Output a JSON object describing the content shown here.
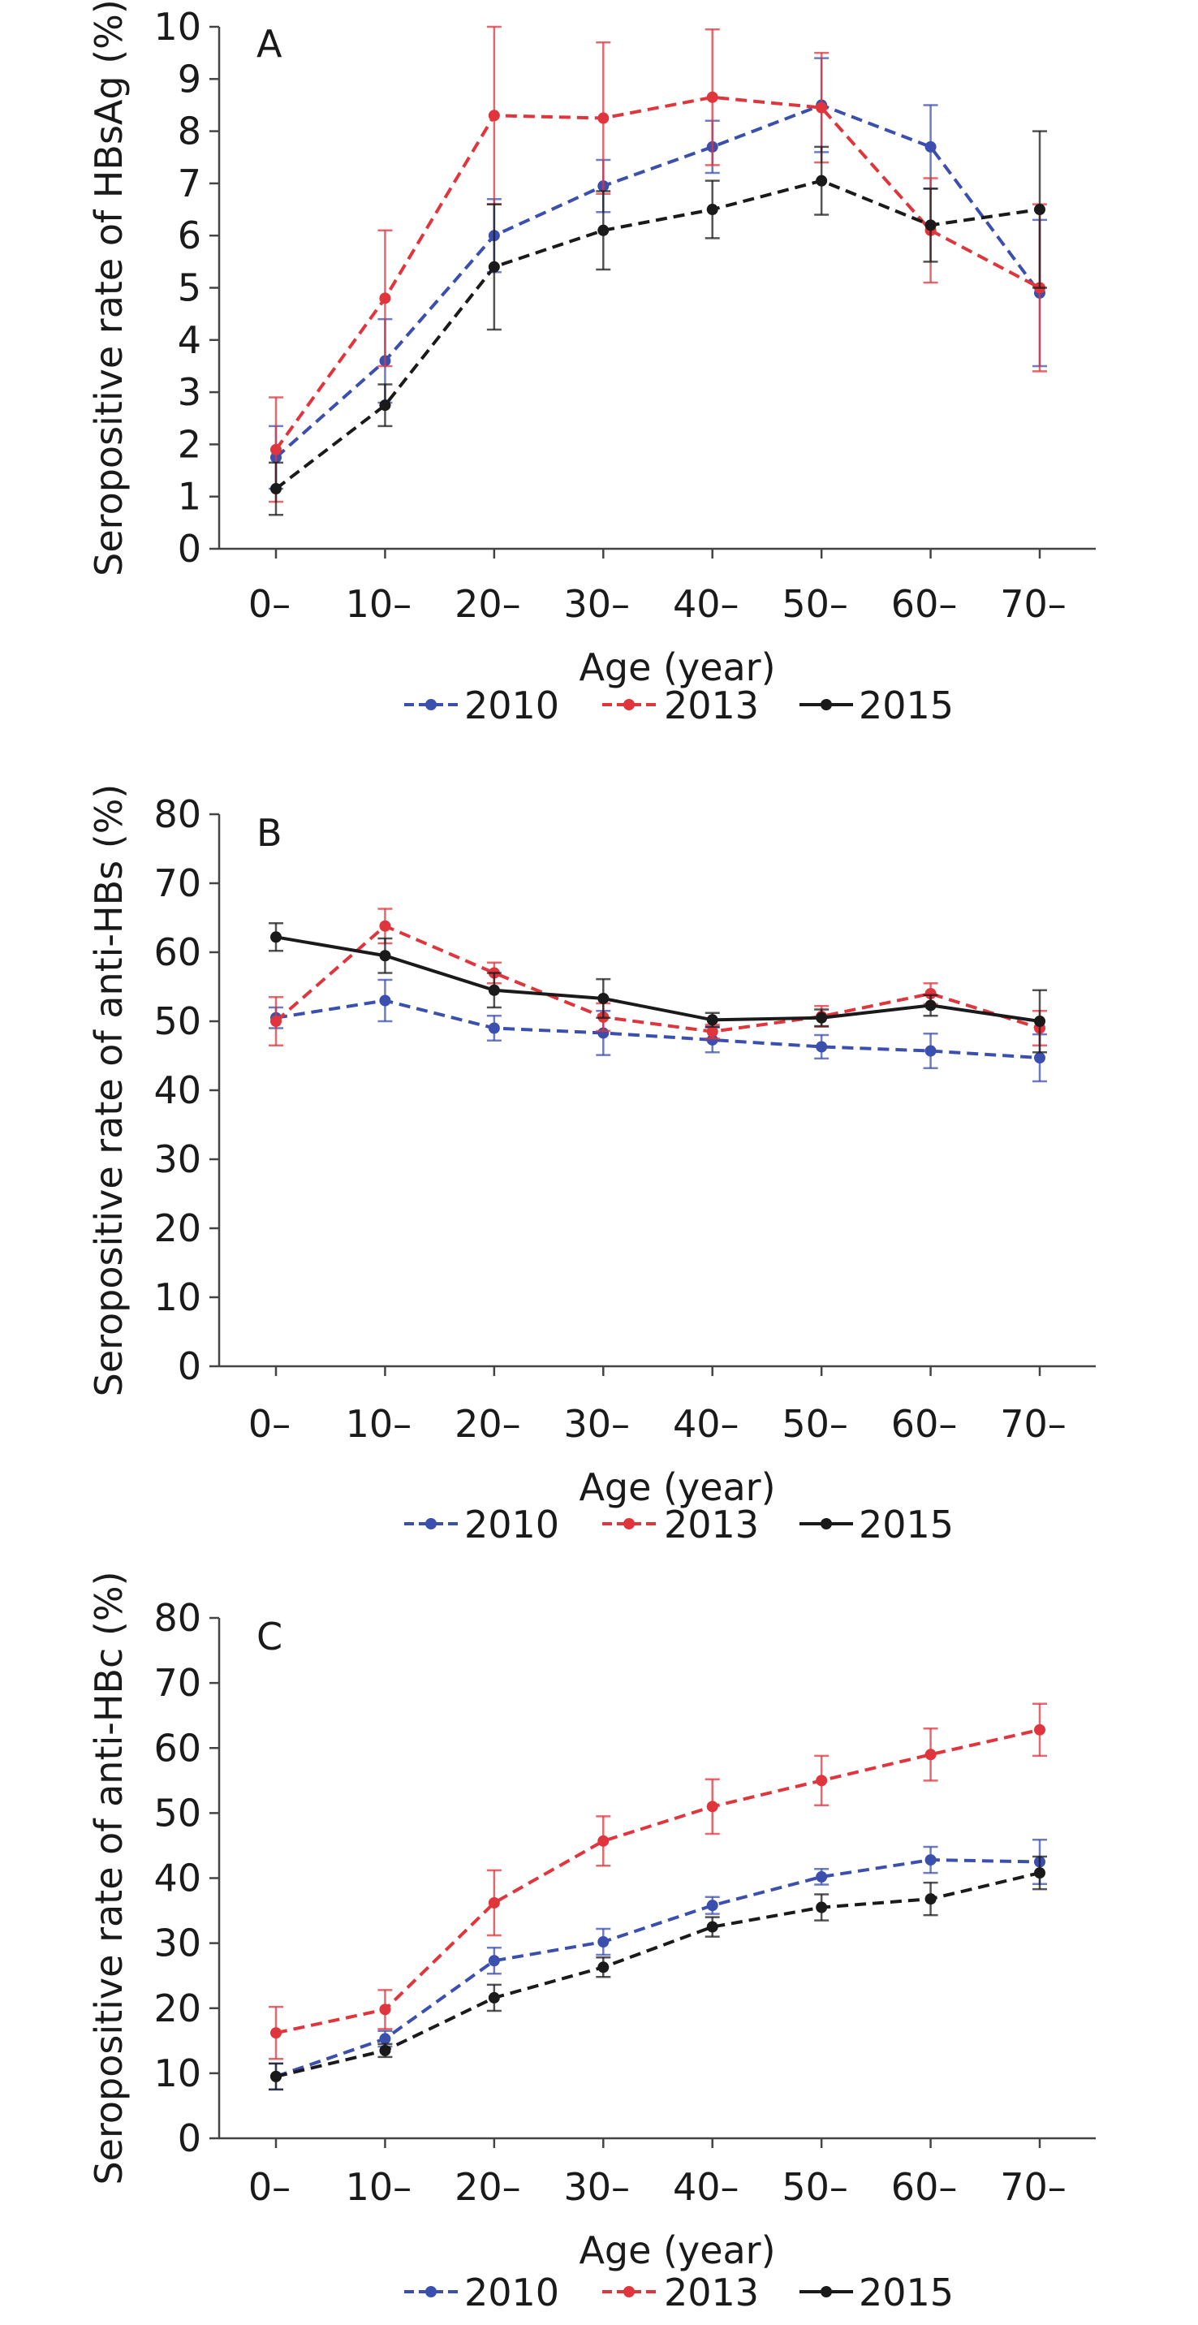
{
  "colors": {
    "2010": "#3b4fae",
    "2013": "#e0353c",
    "2015": "#1a1a1a"
  },
  "chart_data": [
    {
      "type": "line",
      "panel": "A",
      "ylabel": "Seropositive rate of HBsAg (%)",
      "xlabel": "Age (year)",
      "categories": [
        "0–",
        "10–",
        "20–",
        "30–",
        "40–",
        "50–",
        "60–",
        "70–"
      ],
      "ylim": [
        0,
        10
      ],
      "yticks": [
        0,
        1,
        2,
        3,
        4,
        5,
        6,
        7,
        8,
        9,
        10
      ],
      "grid": false,
      "legend_position": "bottom",
      "series": [
        {
          "name": "2010",
          "values": [
            1.75,
            3.6,
            6.0,
            6.95,
            7.7,
            8.5,
            7.7,
            4.9
          ],
          "err": [
            0.6,
            0.8,
            0.7,
            0.5,
            0.5,
            0.9,
            0.8,
            1.4
          ]
        },
        {
          "name": "2013",
          "values": [
            1.9,
            4.8,
            8.3,
            8.25,
            8.65,
            8.45,
            6.1,
            5.0
          ],
          "err": [
            1.0,
            1.3,
            1.7,
            1.45,
            1.3,
            1.05,
            1.0,
            1.6
          ]
        },
        {
          "name": "2015",
          "values": [
            1.15,
            2.75,
            5.4,
            6.1,
            6.5,
            7.05,
            6.2,
            6.5
          ],
          "err": [
            0.5,
            0.4,
            1.2,
            0.75,
            0.55,
            0.65,
            0.7,
            1.5
          ]
        }
      ]
    },
    {
      "type": "line",
      "panel": "B",
      "ylabel": "Seropositive rate of anti-HBs (%)",
      "xlabel": "Age (year)",
      "categories": [
        "0–",
        "10–",
        "20–",
        "30–",
        "40–",
        "50–",
        "60–",
        "70–"
      ],
      "ylim": [
        0,
        80
      ],
      "yticks": [
        0,
        10,
        20,
        30,
        40,
        50,
        60,
        70,
        80
      ],
      "grid": false,
      "legend_position": "bottom",
      "series": [
        {
          "name": "2010",
          "values": [
            50.5,
            53.0,
            49.0,
            48.3,
            47.3,
            46.3,
            45.7,
            44.7
          ],
          "err": [
            1.5,
            3.0,
            1.8,
            3.2,
            1.8,
            1.7,
            2.5,
            3.4
          ]
        },
        {
          "name": "2013",
          "values": [
            50.0,
            63.8,
            57.0,
            50.6,
            48.5,
            50.7,
            54.0,
            49.0
          ],
          "err": [
            3.5,
            2.5,
            1.5,
            2.0,
            1.0,
            1.5,
            1.5,
            2.5
          ]
        },
        {
          "name": "2015",
          "values": [
            62.2,
            59.5,
            54.5,
            53.3,
            50.2,
            50.5,
            52.3,
            50.0
          ],
          "err": [
            2.0,
            2.5,
            2.5,
            2.8,
            1.0,
            1.2,
            1.5,
            4.5
          ]
        }
      ]
    },
    {
      "type": "line",
      "panel": "C",
      "ylabel": "Seropositive rate of anti-HBc (%)",
      "xlabel": "Age (year)",
      "categories": [
        "0–",
        "10–",
        "20–",
        "30–",
        "40–",
        "50–",
        "60–",
        "70–"
      ],
      "ylim": [
        0,
        80
      ],
      "yticks": [
        0,
        10,
        20,
        30,
        40,
        50,
        60,
        70,
        80
      ],
      "grid": false,
      "legend_position": "bottom",
      "series": [
        {
          "name": "2010",
          "values": [
            9.5,
            15.3,
            27.3,
            30.2,
            35.8,
            40.2,
            42.8,
            42.5
          ],
          "err": [
            2.0,
            1.2,
            2.0,
            2.0,
            1.3,
            1.2,
            2.0,
            3.4
          ]
        },
        {
          "name": "2013",
          "values": [
            16.2,
            19.8,
            36.2,
            45.7,
            51.0,
            55.0,
            59.0,
            62.8
          ],
          "err": [
            4.0,
            3.0,
            5.0,
            3.8,
            4.2,
            3.8,
            4.0,
            4.0
          ]
        },
        {
          "name": "2015",
          "values": [
            9.5,
            13.5,
            21.6,
            26.3,
            32.5,
            35.5,
            36.8,
            40.8
          ],
          "err": [
            2.0,
            1.0,
            2.0,
            1.5,
            1.5,
            2.0,
            2.5,
            2.5
          ]
        }
      ]
    }
  ]
}
